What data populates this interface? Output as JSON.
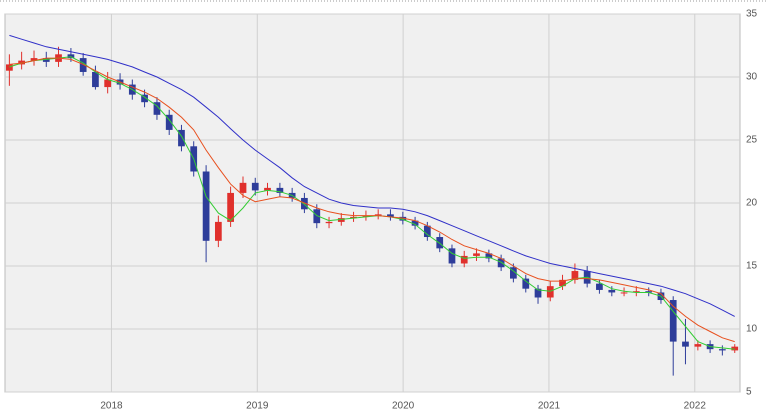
{
  "chart_data": {
    "type": "candlestick",
    "x": [
      2017.3,
      2017.384,
      2017.469,
      2017.553,
      2017.637,
      2017.722,
      2017.806,
      2017.89,
      2017.974,
      2018.059,
      2018.143,
      2018.227,
      2018.312,
      2018.396,
      2018.48,
      2018.564,
      2018.649,
      2018.733,
      2018.817,
      2018.902,
      2018.986,
      2019.07,
      2019.155,
      2019.239,
      2019.323,
      2019.408,
      2019.492,
      2019.576,
      2019.66,
      2019.745,
      2019.829,
      2019.913,
      2019.998,
      2020.082,
      2020.166,
      2020.251,
      2020.335,
      2020.419,
      2020.503,
      2020.588,
      2020.672,
      2020.756,
      2020.841,
      2020.925,
      2021.009,
      2021.093,
      2021.178,
      2021.262,
      2021.346,
      2021.431,
      2021.515,
      2021.599,
      2021.684,
      2021.768,
      2021.852,
      2021.936,
      2022.021,
      2022.105,
      2022.189,
      2022.274
    ],
    "open": [
      30.5,
      31.0,
      31.3,
      31.5,
      31.2,
      31.8,
      31.5,
      30.4,
      29.2,
      29.8,
      29.4,
      28.6,
      28.0,
      27.0,
      25.8,
      24.5,
      22.5,
      17.0,
      18.5,
      20.8,
      21.6,
      21.0,
      21.2,
      20.8,
      20.4,
      19.5,
      18.4,
      18.5,
      18.8,
      18.9,
      19.0,
      19.1,
      18.9,
      18.6,
      18.2,
      17.3,
      16.4,
      15.2,
      15.8,
      16.0,
      15.6,
      14.9,
      14.0,
      13.2,
      12.5,
      13.4,
      13.9,
      14.6,
      13.6,
      13.1,
      12.9,
      12.9,
      13.0,
      12.9,
      12.3,
      9.0,
      8.6,
      8.8,
      8.4,
      8.3
    ],
    "high": [
      31.8,
      32.0,
      32.1,
      32.0,
      32.4,
      32.3,
      31.9,
      30.9,
      30.4,
      30.3,
      29.8,
      29.0,
      28.4,
      27.4,
      26.2,
      24.9,
      23.0,
      19.0,
      21.3,
      22.1,
      22.0,
      21.6,
      21.6,
      21.2,
      20.8,
      19.9,
      18.9,
      19.2,
      19.3,
      19.4,
      19.5,
      19.5,
      19.3,
      18.9,
      18.5,
      17.6,
      16.7,
      16.2,
      16.4,
      16.3,
      15.9,
      15.2,
      14.3,
      13.5,
      13.8,
      14.3,
      15.2,
      15.0,
      13.9,
      13.4,
      13.3,
      13.4,
      13.3,
      13.2,
      12.6,
      10.8,
      9.1,
      9.1,
      8.7,
      8.8
    ],
    "low": [
      29.3,
      30.6,
      30.9,
      30.8,
      30.8,
      31.2,
      30.1,
      29.0,
      28.7,
      29.0,
      28.2,
      27.6,
      26.6,
      25.4,
      24.1,
      22.1,
      15.3,
      16.5,
      18.1,
      20.4,
      20.6,
      20.6,
      20.5,
      20.1,
      19.2,
      18.0,
      18.0,
      18.2,
      18.5,
      18.6,
      18.7,
      18.6,
      18.3,
      17.9,
      17.0,
      16.1,
      14.9,
      14.9,
      15.4,
      15.3,
      14.6,
      13.7,
      12.9,
      12.0,
      12.2,
      13.1,
      13.6,
      13.3,
      12.8,
      12.6,
      12.6,
      12.6,
      12.6,
      12.0,
      6.3,
      7.2,
      8.3,
      8.1,
      7.9,
      8.1
    ],
    "close": [
      31.0,
      31.3,
      31.5,
      31.2,
      31.8,
      31.5,
      30.4,
      29.2,
      29.8,
      29.4,
      28.6,
      28.0,
      27.0,
      25.8,
      24.5,
      22.5,
      17.0,
      18.5,
      20.8,
      21.6,
      21.0,
      21.2,
      20.8,
      20.4,
      19.5,
      18.4,
      18.5,
      18.8,
      18.9,
      19.0,
      19.1,
      18.9,
      18.6,
      18.2,
      17.3,
      16.4,
      15.2,
      15.8,
      16.0,
      15.6,
      14.9,
      14.0,
      13.2,
      12.5,
      13.4,
      13.9,
      14.6,
      13.6,
      13.1,
      12.9,
      12.9,
      13.0,
      12.9,
      12.3,
      9.0,
      8.6,
      8.8,
      8.4,
      8.3,
      8.6
    ],
    "up_color": "#e0302c",
    "down_color": "#2e3d9a",
    "series": [
      {
        "color": "#33cc33",
        "values": [
          30.8,
          31.1,
          31.3,
          31.4,
          31.5,
          31.6,
          31.1,
          30.4,
          29.8,
          29.5,
          29.0,
          28.4,
          27.7,
          26.6,
          25.3,
          23.5,
          20.5,
          19.2,
          18.6,
          19.6,
          20.8,
          21.0,
          20.9,
          20.6,
          19.9,
          19.0,
          18.6,
          18.7,
          18.8,
          18.9,
          19.0,
          18.9,
          18.7,
          18.3,
          17.5,
          16.8,
          16.0,
          15.6,
          15.7,
          15.7,
          15.3,
          14.6,
          13.8,
          13.1,
          13.0,
          13.4,
          14.0,
          14.1,
          13.7,
          13.2,
          13.0,
          12.9,
          12.9,
          12.6,
          11.4,
          10.2,
          9.0,
          8.6,
          8.5,
          8.4
        ]
      },
      {
        "color": "#e8501e",
        "values": [
          31.0,
          31.1,
          31.3,
          31.5,
          31.5,
          31.4,
          31.0,
          30.5,
          30.0,
          29.6,
          29.2,
          28.8,
          28.3,
          27.6,
          26.8,
          25.8,
          24.2,
          22.8,
          21.5,
          20.6,
          20.1,
          20.3,
          20.5,
          20.4,
          20.0,
          19.6,
          19.3,
          19.1,
          19.0,
          19.0,
          19.0,
          18.9,
          18.8,
          18.6,
          18.2,
          17.7,
          17.1,
          16.6,
          16.3,
          16.0,
          15.6,
          15.0,
          14.4,
          14.0,
          13.8,
          13.8,
          14.0,
          14.0,
          13.9,
          13.7,
          13.5,
          13.3,
          13.1,
          12.8,
          11.8,
          11.0,
          10.3,
          9.8,
          9.3,
          9.0
        ]
      },
      {
        "color": "#3030c8",
        "values": [
          33.3,
          33.0,
          32.7,
          32.4,
          32.2,
          32.0,
          31.8,
          31.6,
          31.4,
          31.1,
          30.8,
          30.4,
          30.0,
          29.5,
          29.0,
          28.4,
          27.6,
          26.8,
          25.9,
          25.0,
          24.2,
          23.5,
          22.8,
          22.0,
          21.3,
          20.8,
          20.3,
          20.0,
          19.8,
          19.7,
          19.6,
          19.6,
          19.5,
          19.3,
          19.0,
          18.6,
          18.2,
          17.8,
          17.4,
          17.0,
          16.6,
          16.2,
          15.8,
          15.5,
          15.2,
          15.0,
          14.8,
          14.6,
          14.4,
          14.2,
          14.0,
          13.8,
          13.6,
          13.4,
          13.1,
          12.8,
          12.4,
          12.0,
          11.5,
          11.0
        ]
      }
    ],
    "xlim": [
      2017.27,
      2022.31
    ],
    "xticks": [
      2018,
      2019,
      2020,
      2021,
      2022
    ],
    "ylim": [
      5,
      35
    ],
    "yticks": [
      5,
      10,
      15,
      20,
      25,
      30,
      35
    ],
    "grid": true
  }
}
